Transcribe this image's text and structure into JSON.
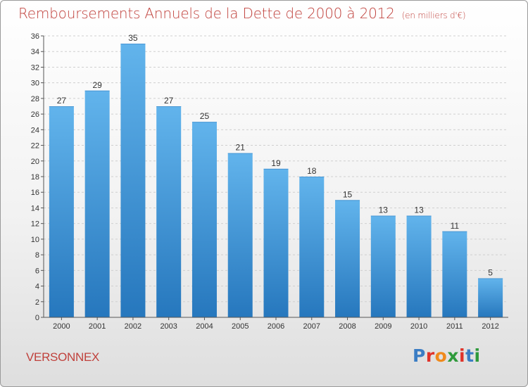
{
  "header": {
    "title": "Remboursements Annuels de la Dette de 2000 à 2012",
    "subtitle": "(en milliers d'€)"
  },
  "footer": {
    "commune": "VERSONNEX",
    "logo_text": "Proxiti",
    "logo_colors": [
      "#3b7dc4",
      "#e0332a",
      "#f08a1c",
      "#2f9a3c",
      "#e0332a",
      "#3b7dc4",
      "#2f9a3c"
    ]
  },
  "colors": {
    "bar_top": "#62b4ec",
    "bar_bottom": "#2677bd",
    "text": "#c0413c",
    "axis": "#555555",
    "grid": "#cfcfcf"
  },
  "chart_data": {
    "type": "bar",
    "title": "Remboursements Annuels de la Dette de 2000 à 2012",
    "subtitle": "(en milliers d'€)",
    "xlabel": "",
    "ylabel": "",
    "categories": [
      "2000",
      "2001",
      "2002",
      "2003",
      "2004",
      "2005",
      "2006",
      "2007",
      "2008",
      "2009",
      "2010",
      "2011",
      "2012"
    ],
    "values": [
      27,
      29,
      35,
      27,
      25,
      21,
      19,
      18,
      15,
      13,
      13,
      11,
      5
    ],
    "ylim": [
      0,
      36
    ],
    "yticks": [
      0,
      2,
      4,
      6,
      8,
      10,
      12,
      14,
      16,
      18,
      20,
      22,
      24,
      26,
      28,
      30,
      32,
      34,
      36
    ],
    "data_labels": true,
    "grid": "horizontal dashed",
    "legend": "none"
  }
}
